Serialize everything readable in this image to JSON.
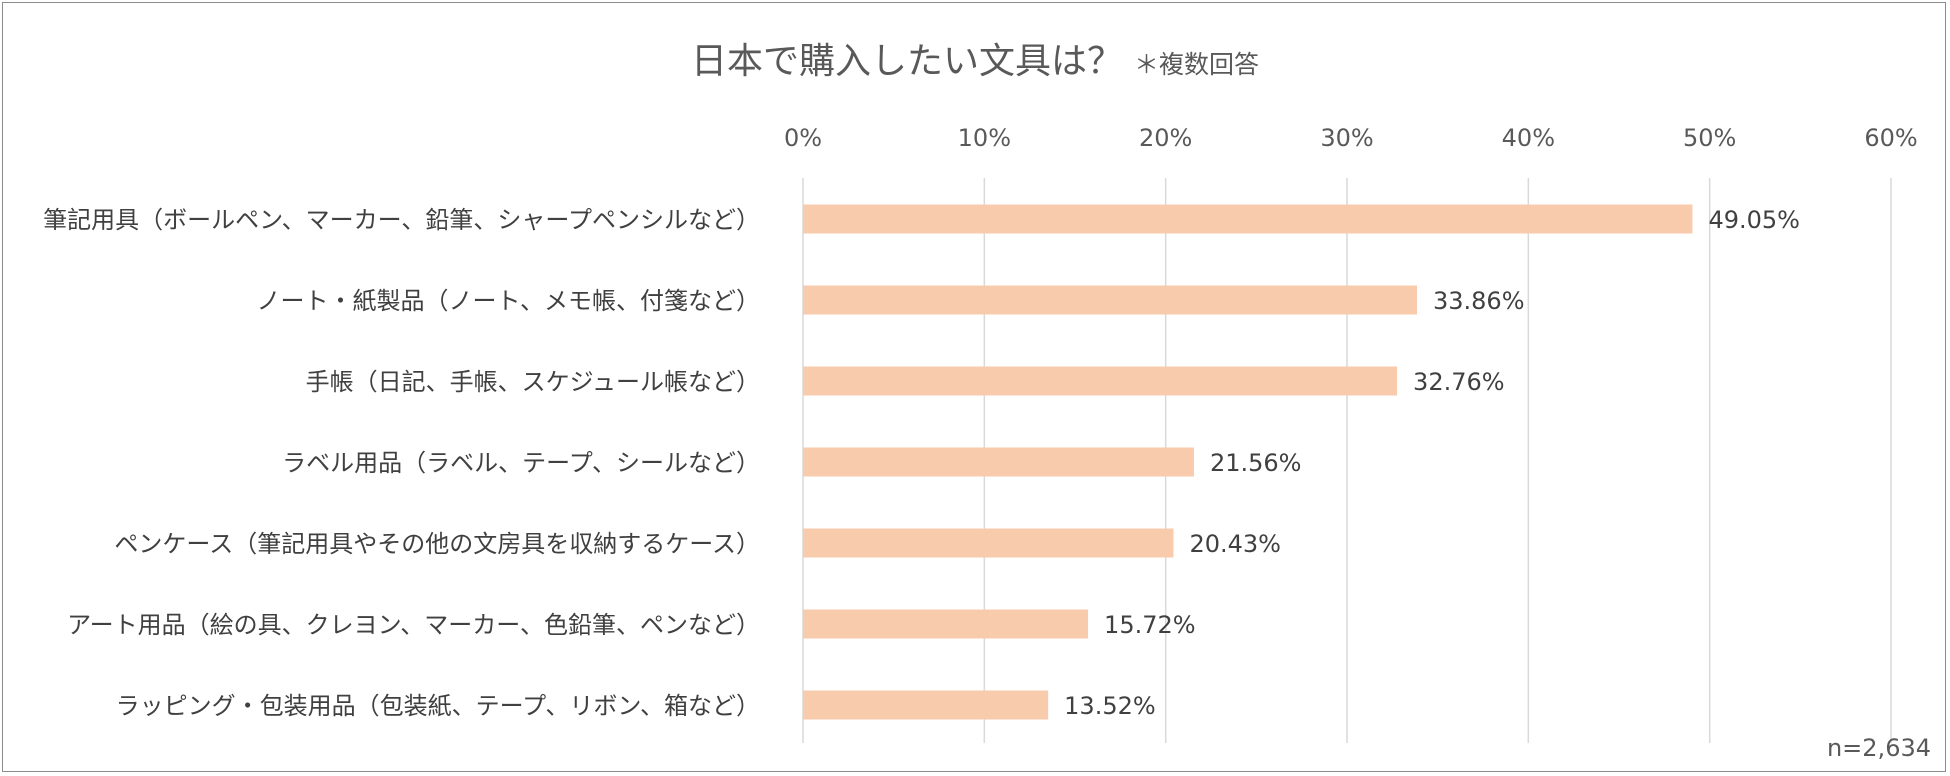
{
  "chart_data": {
    "type": "bar",
    "orientation": "horizontal",
    "title": "日本で購入したい文具は？",
    "subtitle": "＊複数回答",
    "note": "n=2,634",
    "categories": [
      "筆記用具（ボールペン、マーカー、鉛筆、シャープペンシルなど）",
      "ノート・紙製品（ノート、メモ帳、付箋など）",
      "手帳（日記、手帳、スケジュール帳など）",
      "ラベル用品（ラベル、テープ、シールなど）",
      "ペンケース（筆記用具やその他の文房具を収納するケース）",
      "アート用品（絵の具、クレヨン、マーカー、色鉛筆、ペンなど）",
      "ラッピング・包装用品（包装紙、テープ、リボン、箱など）"
    ],
    "values": [
      49.05,
      33.86,
      32.76,
      21.56,
      20.43,
      15.72,
      13.52
    ],
    "value_labels": [
      "49.05%",
      "33.86%",
      "32.76%",
      "21.56%",
      "20.43%",
      "15.72%",
      "13.52%"
    ],
    "xlim": [
      0,
      60
    ],
    "ticks": [
      0,
      10,
      20,
      30,
      40,
      50,
      60
    ],
    "tick_labels": [
      "0%",
      "10%",
      "20%",
      "30%",
      "40%",
      "50%",
      "60%"
    ],
    "axis_position": "top",
    "grid": true,
    "bar_color": "#f8cbad",
    "grid_color": "#d9d9d9"
  }
}
